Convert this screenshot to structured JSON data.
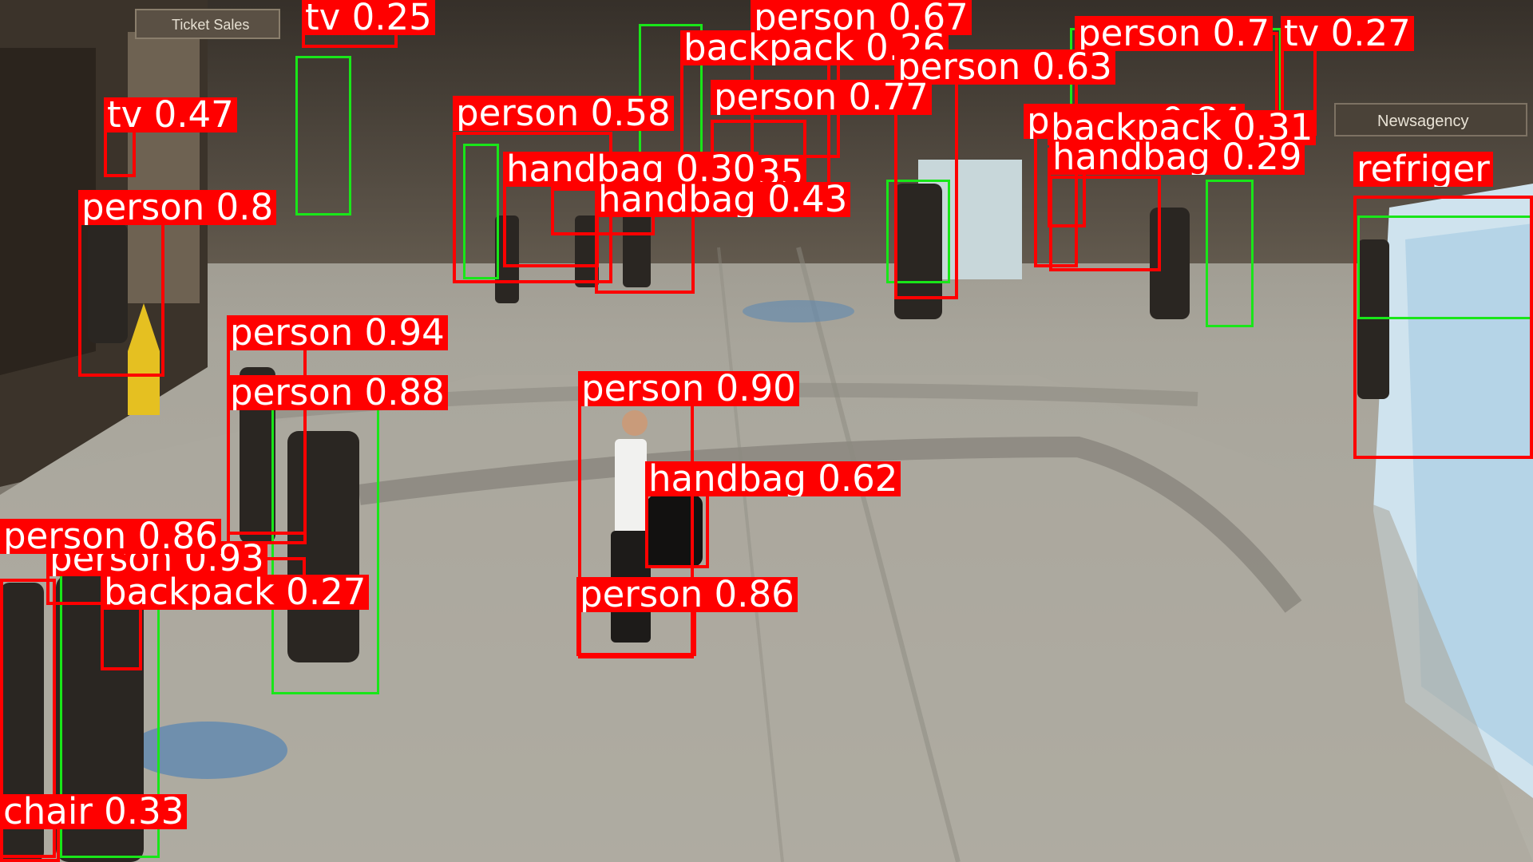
{
  "scene": {
    "colors": {
      "floor": "#a8a59b",
      "floor_dark": "#7e7a70",
      "wall": "#3a3329",
      "box": "#ff0000",
      "gt_box": "#19e619",
      "label_text": "#ffffff"
    },
    "signs": {
      "ticket_sales": "Ticket Sales",
      "newsagency": "Newsagency"
    }
  },
  "detections": [
    {
      "label": "tv 0.25"
    },
    {
      "label": "person 0.67"
    },
    {
      "label": "person 0.7"
    },
    {
      "label": "tv 0.27"
    },
    {
      "label": "backpack 0.26"
    },
    {
      "label": "person 0.63"
    },
    {
      "label": "tv 0.47"
    },
    {
      "label": "person 0.77"
    },
    {
      "label": "person 0.84"
    },
    {
      "label": "person 0.58"
    },
    {
      "label": "backpack 0.31"
    },
    {
      "label": "handbag 0.35"
    },
    {
      "label": "handbag 0.29"
    },
    {
      "label": "handbag 0.30"
    },
    {
      "label": "refriger"
    },
    {
      "label": "person 0.8"
    },
    {
      "label": "handbag 0.43"
    },
    {
      "label": "person 0.94"
    },
    {
      "label": "person 0.88"
    },
    {
      "label": "person 0.90"
    },
    {
      "label": "handbag 0.62"
    },
    {
      "label": "person 0.86"
    },
    {
      "label": "person 0.93"
    },
    {
      "label": "backpack 0.27"
    },
    {
      "label": "person 0.86"
    },
    {
      "label": "chair 0.33"
    }
  ]
}
